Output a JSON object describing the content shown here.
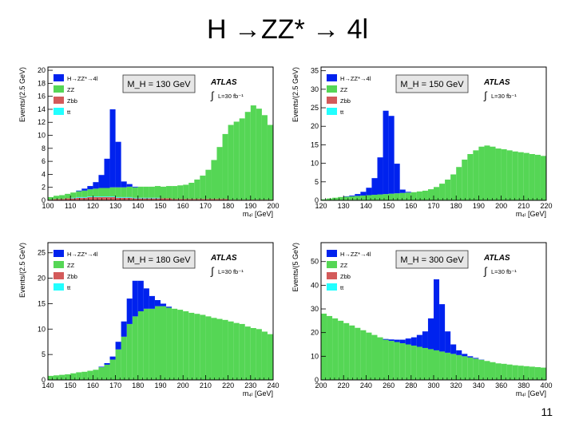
{
  "slide": {
    "title": "H →ZZ* → 4l",
    "page_number": "11"
  },
  "colors": {
    "signal": "#0022ee",
    "zz": "#55d655",
    "zbb": "#d35a5a",
    "tt": "#22ffff",
    "mass_box": "#e6e6e6"
  },
  "legend_items": [
    "H→ZZ*→4l",
    "ZZ",
    "Zbb",
    "tt"
  ],
  "atlas": {
    "label": "ATLAS",
    "lumi": "L=30 fb⁻¹"
  },
  "x_label": "m₄ₗ [GeV]",
  "chart_data": [
    {
      "type": "bar",
      "stacked": true,
      "mass_label": "M_H = 130 GeV",
      "ylabel": "Events/(2.5 GeV)",
      "xlim": [
        100,
        200
      ],
      "ylim": [
        0,
        20.5
      ],
      "bin_width": 2.5,
      "xticks": [
        100,
        110,
        120,
        130,
        140,
        150,
        160,
        170,
        180,
        190,
        200
      ],
      "yticks": [
        0,
        2,
        4,
        6,
        8,
        10,
        12,
        14,
        16,
        18,
        20
      ],
      "series": [
        {
          "name": "Zbb",
          "values": [
            0.1,
            0.2,
            0.2,
            0.3,
            0.3,
            0.4,
            0.4,
            0.5,
            0.5,
            0.5,
            0.5,
            0.5,
            0.4,
            0.4,
            0.4,
            0.3,
            0.3,
            0.3,
            0.3,
            0.3,
            0.3,
            0.3,
            0.2,
            0.2,
            0.2,
            0.2,
            0.2,
            0.2,
            0.2,
            0.2,
            0.2,
            0.2,
            0.1,
            0.1,
            0.1,
            0.1,
            0.1,
            0.1,
            0.1,
            0.1
          ]
        },
        {
          "name": "tt",
          "values": [
            0,
            0,
            0,
            0,
            0.1,
            0.1,
            0.1,
            0.1,
            0.1,
            0.1,
            0.1,
            0.1,
            0.1,
            0.1,
            0.1,
            0.1,
            0.1,
            0.1,
            0.1,
            0.1,
            0,
            0,
            0,
            0,
            0,
            0,
            0,
            0,
            0,
            0,
            0,
            0,
            0,
            0,
            0,
            0,
            0,
            0,
            0,
            0
          ]
        },
        {
          "name": "ZZ",
          "values": [
            0.4,
            0.5,
            0.6,
            0.7,
            0.8,
            0.9,
            1.0,
            1.1,
            1.2,
            1.3,
            1.3,
            1.4,
            1.5,
            1.5,
            1.6,
            1.6,
            1.7,
            1.7,
            1.7,
            1.8,
            1.8,
            1.9,
            2.0,
            2.1,
            2.2,
            2.5,
            3.0,
            3.6,
            4.5,
            6.0,
            8.0,
            10.0,
            11.5,
            12.0,
            12.5,
            13.5,
            14.5,
            14.0,
            13.0,
            11.5
          ]
        },
        {
          "name": "H→ZZ*→4l",
          "values": [
            0,
            0,
            0,
            0,
            0,
            0.1,
            0.3,
            0.5,
            1.0,
            2.0,
            4.5,
            12.0,
            7.0,
            0.9,
            0.4,
            0.1,
            0,
            0,
            0,
            0,
            0,
            0,
            0,
            0,
            0,
            0,
            0,
            0,
            0,
            0,
            0,
            0,
            0,
            0,
            0,
            0,
            0,
            0,
            0,
            0
          ]
        }
      ]
    },
    {
      "type": "bar",
      "stacked": true,
      "mass_label": "M_H = 150 GeV",
      "ylabel": "Events/(2.5 GeV)",
      "xlim": [
        120,
        220
      ],
      "ylim": [
        0,
        36
      ],
      "bin_width": 2.5,
      "xticks": [
        120,
        130,
        140,
        150,
        160,
        170,
        180,
        190,
        200,
        210,
        220
      ],
      "yticks": [
        0,
        5,
        10,
        15,
        20,
        25,
        30,
        35
      ],
      "series": [
        {
          "name": "ZZ",
          "values": [
            0.3,
            0.5,
            0.7,
            0.9,
            1.0,
            1.1,
            1.2,
            1.3,
            1.4,
            1.5,
            1.6,
            1.7,
            1.8,
            1.9,
            2.0,
            2.1,
            2.2,
            2.4,
            2.6,
            3.0,
            3.6,
            4.5,
            5.6,
            7.0,
            9.0,
            11.0,
            12.5,
            13.5,
            14.5,
            14.8,
            14.5,
            14.0,
            13.8,
            13.5,
            13.2,
            13.0,
            12.8,
            12.5,
            12.3,
            12.0
          ]
        },
        {
          "name": "H→ZZ*→4l",
          "values": [
            0,
            0,
            0,
            0,
            0.1,
            0.2,
            0.5,
            1.0,
            2.0,
            4.5,
            10.0,
            22.5,
            21.0,
            8.0,
            0.9,
            0.2,
            0,
            0,
            0,
            0,
            0,
            0,
            0,
            0,
            0,
            0,
            0,
            0,
            0,
            0,
            0,
            0,
            0,
            0,
            0,
            0,
            0,
            0,
            0,
            0
          ]
        }
      ]
    },
    {
      "type": "bar",
      "stacked": true,
      "mass_label": "M_H = 180 GeV",
      "ylabel": "Events/(2.5 GeV)",
      "xlim": [
        140,
        240
      ],
      "ylim": [
        0,
        27
      ],
      "bin_width": 2.5,
      "xticks": [
        140,
        150,
        160,
        170,
        180,
        190,
        200,
        210,
        220,
        230,
        240
      ],
      "yticks": [
        0,
        5,
        10,
        15,
        20,
        25
      ],
      "series": [
        {
          "name": "ZZ",
          "values": [
            0.8,
            0.9,
            1.0,
            1.1,
            1.3,
            1.5,
            1.6,
            1.8,
            2.0,
            2.5,
            3.0,
            4.0,
            6.0,
            8.5,
            11.0,
            12.5,
            13.5,
            14.0,
            14.0,
            14.5,
            14.5,
            14.2,
            14.0,
            13.8,
            13.5,
            13.2,
            13.0,
            12.8,
            12.5,
            12.2,
            12.0,
            11.8,
            11.5,
            11.2,
            11.0,
            10.5,
            10.2,
            10.0,
            9.5,
            9.0
          ]
        },
        {
          "name": "H→ZZ*→4l",
          "values": [
            0,
            0,
            0,
            0,
            0,
            0,
            0,
            0,
            0,
            0.1,
            0.3,
            0.6,
            1.5,
            3.0,
            5.0,
            7.0,
            6.0,
            4.0,
            2.5,
            1.2,
            0.5,
            0.2,
            0,
            0,
            0,
            0,
            0,
            0,
            0,
            0,
            0,
            0,
            0,
            0,
            0,
            0,
            0,
            0,
            0,
            0
          ]
        }
      ]
    },
    {
      "type": "bar",
      "stacked": true,
      "mass_label": "M_H = 300 GeV",
      "ylabel": "Events/(5 GeV)",
      "xlim": [
        200,
        400
      ],
      "ylim": [
        0,
        58
      ],
      "bin_width": 5,
      "xticks": [
        200,
        220,
        240,
        260,
        280,
        300,
        320,
        340,
        360,
        380,
        400
      ],
      "yticks": [
        0,
        10,
        20,
        30,
        40,
        50
      ],
      "series": [
        {
          "name": "ZZ",
          "values": [
            28,
            27,
            26,
            25,
            24,
            23,
            22,
            21,
            20,
            19,
            18,
            17,
            16.5,
            16,
            15.5,
            15,
            14.5,
            14,
            13.5,
            13,
            12.5,
            12,
            11.5,
            11,
            10.5,
            10,
            9.5,
            9,
            8.5,
            8,
            7.5,
            7,
            6.8,
            6.5,
            6.2,
            6,
            5.8,
            5.6,
            5.4,
            5.2
          ]
        },
        {
          "name": "H→ZZ*→4l",
          "values": [
            0,
            0,
            0,
            0,
            0,
            0,
            0,
            0,
            0,
            0,
            0,
            0.3,
            0.6,
            1,
            1.5,
            2.5,
            3.5,
            5,
            7,
            13,
            30,
            20,
            9,
            4,
            2,
            1,
            0.5,
            0.3,
            0.1,
            0,
            0,
            0,
            0,
            0,
            0,
            0,
            0,
            0,
            0,
            0
          ]
        }
      ]
    }
  ]
}
